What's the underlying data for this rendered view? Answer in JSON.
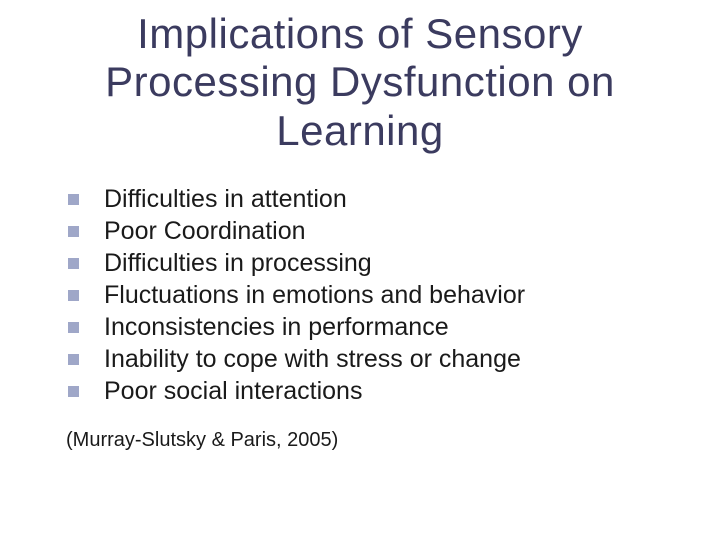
{
  "slide": {
    "title": "Implications of Sensory Processing Dysfunction on Learning",
    "bullets": [
      "Difficulties in attention",
      "Poor Coordination",
      "Difficulties in processing",
      "Fluctuations in emotions and behavior",
      "Inconsistencies in performance",
      "Inability to cope with stress or change",
      "Poor social interactions"
    ],
    "citation": "(Murray-Slutsky & Paris, 2005)",
    "style": {
      "background_color": "#ffffff",
      "title_color": "#3b3b5f",
      "title_fontsize": 42,
      "body_color": "#1a1a1a",
      "body_fontsize": 25,
      "bullet_color": "#9fa7c8",
      "bullet_size": 11,
      "citation_fontsize": 20,
      "font_family": "Tahoma"
    }
  }
}
